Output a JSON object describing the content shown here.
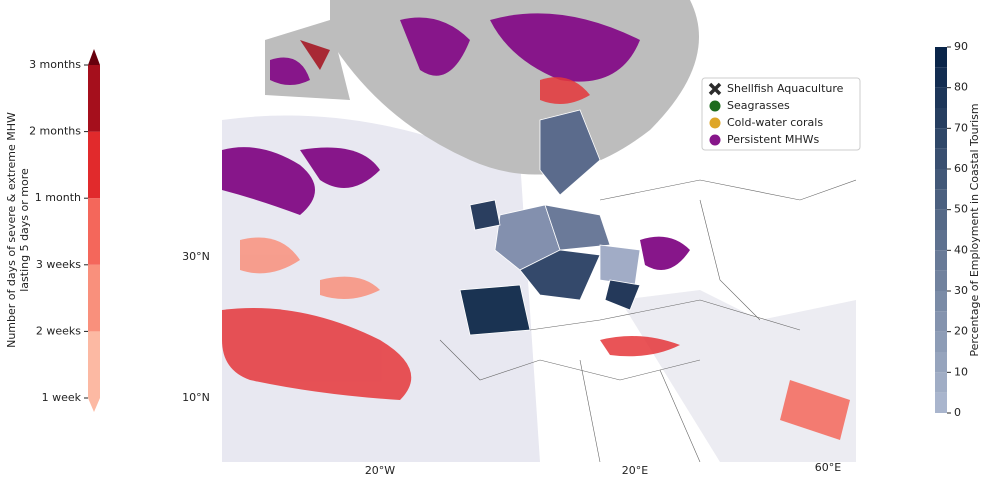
{
  "left_colorbar": {
    "label": [
      "Number of days of severe & extreme MHW",
      "lasting 5 days or more"
    ],
    "ticks": [
      "1 week",
      "2 weeks",
      "3 weeks",
      "1 month",
      "2 months",
      "3 months"
    ],
    "colors": [
      "#fcb9a3",
      "#fcb9a3",
      "#f9907c",
      "#f4675b",
      "#e12a2c",
      "#a50f1c",
      "#67000d"
    ]
  },
  "right_colorbar": {
    "label": "Percentage of Employment in Coastal Tourism",
    "range": [
      0,
      90
    ],
    "ticks": [
      0,
      10,
      20,
      30,
      40,
      50,
      60,
      70,
      80,
      90
    ],
    "levels": [
      0,
      5,
      10,
      15,
      20,
      25,
      30,
      35,
      40,
      45,
      50,
      55,
      60,
      65,
      70,
      75,
      80,
      85,
      90
    ],
    "colors": [
      "#a9b5cd",
      "#0a2549"
    ]
  },
  "legend": {
    "items": [
      {
        "name": "Shellfish Aquaculture",
        "color": "#2b2b2b",
        "marker": "x"
      },
      {
        "name": "Seagrasses",
        "color": "#1d6b1d",
        "marker": "circle"
      },
      {
        "name": "Cold-water corals",
        "color": "#dea628",
        "marker": "circle"
      },
      {
        "name": "Persistent MHWs",
        "color": "#87168a",
        "marker": "circle"
      }
    ]
  },
  "axes": {
    "lat_labels": [
      "30°N",
      "10°N"
    ],
    "lon_labels": [
      "20°W",
      "20°E",
      "60°E"
    ]
  }
}
